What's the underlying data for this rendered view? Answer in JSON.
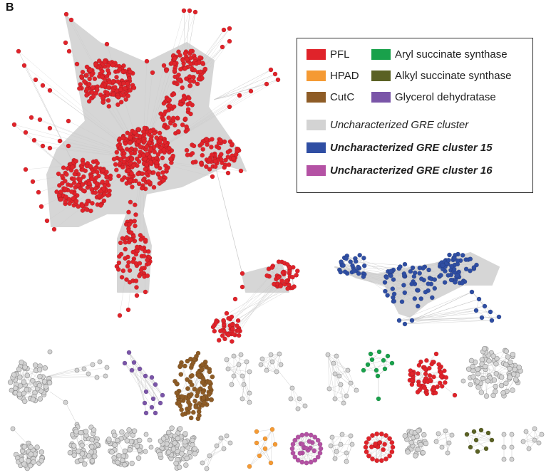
{
  "panel_label": "B",
  "legend": {
    "items": [
      {
        "label": "PFL",
        "color": "#e0232a"
      },
      {
        "label": "Aryl succinate synthase",
        "color": "#19a14b"
      },
      {
        "label": "HPAD",
        "color": "#f59a33"
      },
      {
        "label": "Alkyl succinate synthase",
        "color": "#5a6124"
      },
      {
        "label": "CutC",
        "color": "#8e5c26"
      },
      {
        "label": "Glycerol dehydratase",
        "color": "#7a55a8"
      },
      {
        "label": "Uncharacterized GRE cluster",
        "color": "#d3d3d3"
      },
      {
        "label": "Uncharacterized GRE cluster 15",
        "color": "#2f4ea3"
      },
      {
        "label": "Uncharacterized GRE cluster 16",
        "color": "#b452a4"
      }
    ]
  },
  "colors": {
    "edge": "#c9c9c9",
    "hull": "#d6d6d6",
    "node_outline": "#8a8a8a"
  }
}
